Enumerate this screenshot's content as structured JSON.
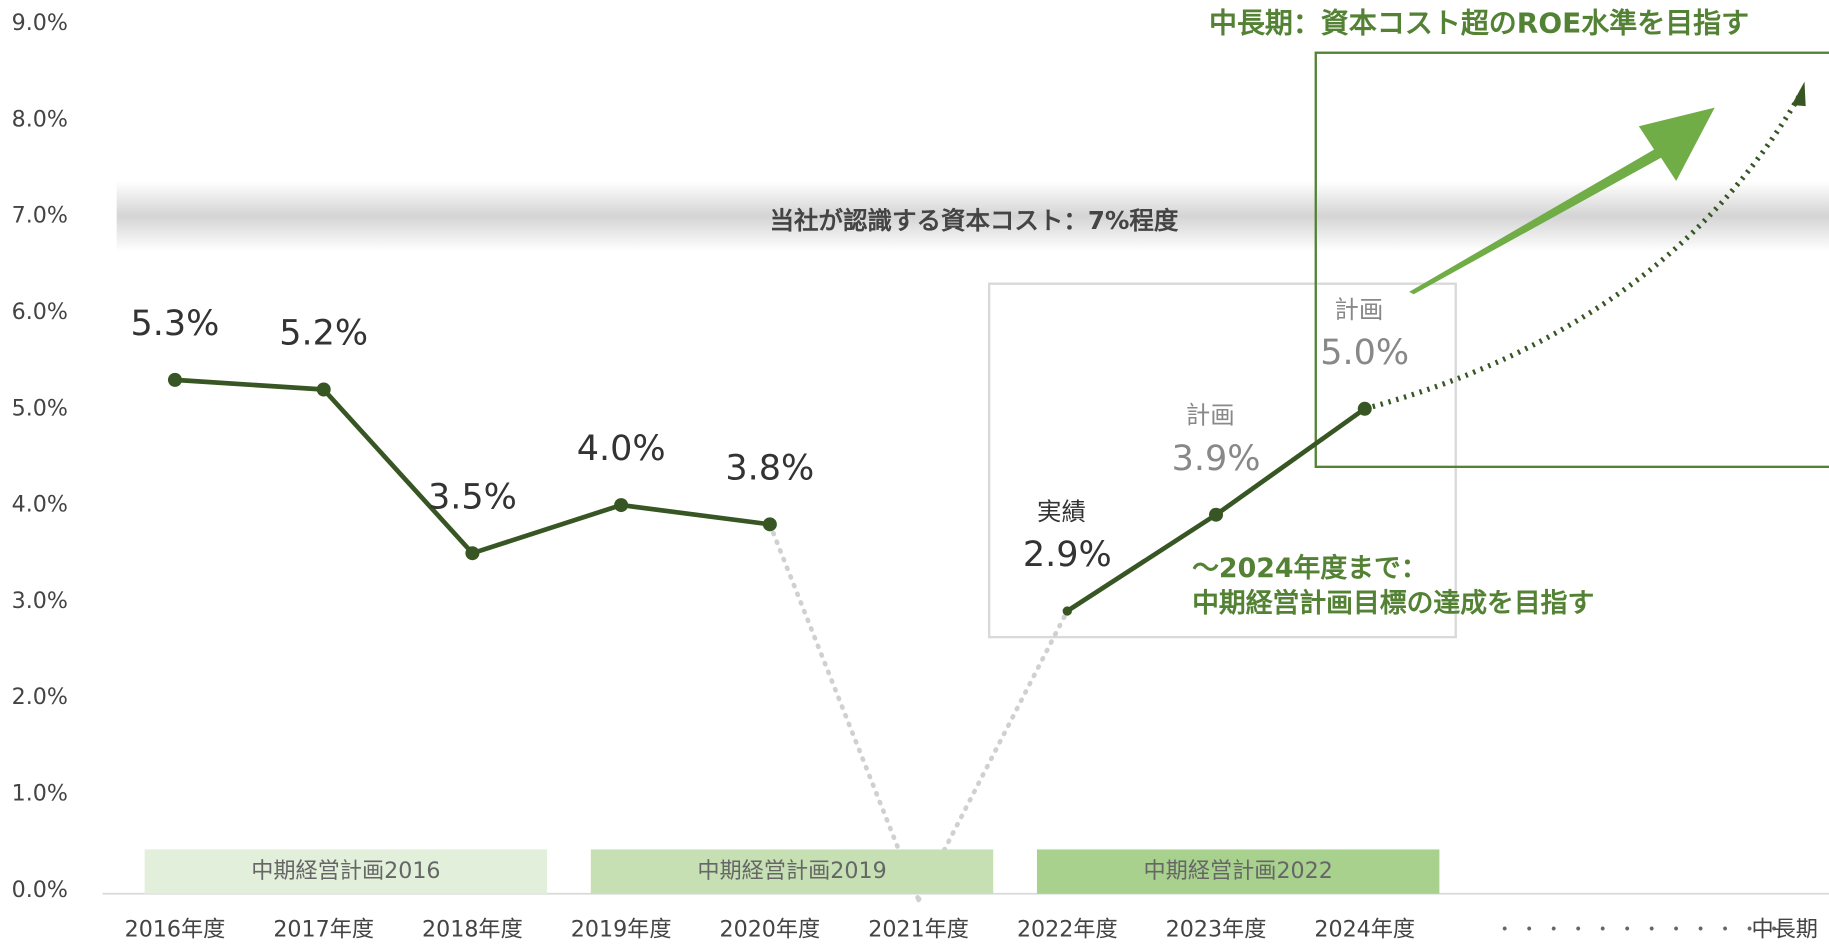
{
  "chart_data": {
    "type": "line",
    "categories": [
      "2016年度",
      "2017年度",
      "2018年度",
      "2019年度",
      "2020年度",
      "2021年度",
      "2022年度",
      "2023年度",
      "2024年度",
      "中長期"
    ],
    "values": [
      5.3,
      5.2,
      3.5,
      4.0,
      3.8,
      -0.1,
      2.9,
      3.9,
      5.0,
      8.3
    ],
    "value_labels": [
      "5.3%",
      "5.2%",
      "3.5%",
      "4.0%",
      "3.8%",
      null,
      "2.9%",
      "3.9%",
      "5.0%",
      null
    ],
    "point_notes": [
      null,
      null,
      null,
      null,
      null,
      null,
      "実績",
      "計画",
      "計画",
      null
    ],
    "line_styles": [
      "solid",
      "solid",
      "solid",
      "solid",
      "dotted-gray",
      "dotted-gray",
      "solid",
      "solid",
      "dotted-green"
    ],
    "color": "#375623",
    "ylim": [
      0,
      9
    ],
    "yticks": [
      {
        "value": 0,
        "label": "0.0%"
      },
      {
        "value": 1,
        "label": "1.0%"
      },
      {
        "value": 2,
        "label": "2.0%"
      },
      {
        "value": 3,
        "label": "3.0%"
      },
      {
        "value": 4,
        "label": "4.0%"
      },
      {
        "value": 5,
        "label": "5.0%"
      },
      {
        "value": 6,
        "label": "6.0%"
      },
      {
        "value": 7,
        "label": "7.0%"
      },
      {
        "value": 8,
        "label": "8.0%"
      },
      {
        "value": 9,
        "label": "9.0%"
      }
    ],
    "plan_bands": [
      {
        "label": "中期経営計画2016",
        "from": 0,
        "to": 2,
        "color": "#e2efda"
      },
      {
        "label": "中期経営計画2019",
        "from": 3,
        "to": 5,
        "color": "#c6e0b4"
      },
      {
        "label": "中期経営計画2022",
        "from": 6,
        "to": 8,
        "color": "#a9d18e"
      }
    ],
    "capital_cost": {
      "value": 7,
      "label": "当社が認識する資本コスト：7%程度"
    },
    "annotations": {
      "long_term": "中長期：資本コスト超のROE水準を目指す",
      "mid_term_1": "〜2024年度まで：",
      "mid_term_2": "中期経営計画目標の達成を目指す"
    }
  }
}
